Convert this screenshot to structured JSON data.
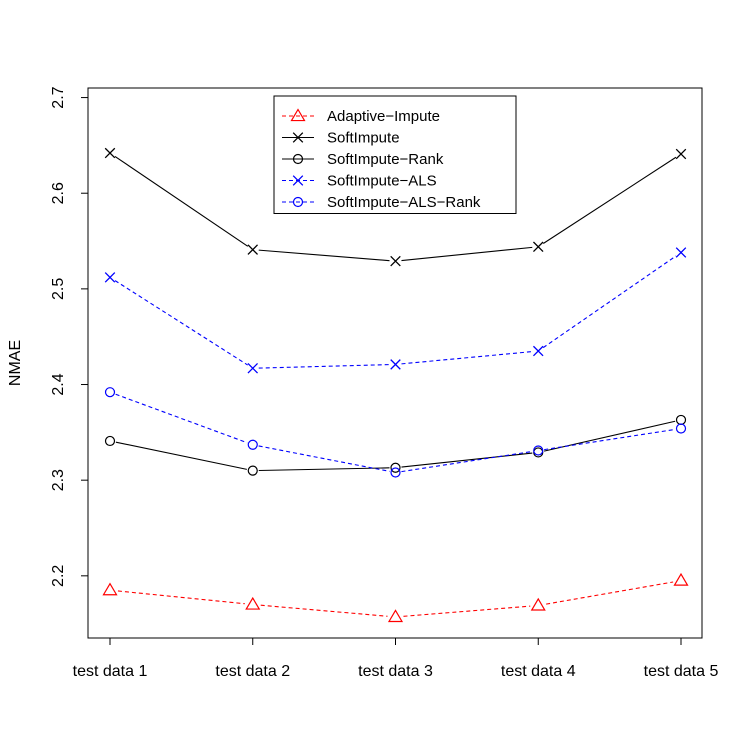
{
  "chart_data": {
    "type": "line",
    "xlabel": "",
    "ylabel": "NMAE",
    "categories": [
      "test data 1",
      "test data 2",
      "test data 3",
      "test data 4",
      "test data 5"
    ],
    "ylim": [
      2.135,
      2.71
    ],
    "yticks": [
      "2.2",
      "2.3",
      "2.4",
      "2.5",
      "2.6",
      "2.7"
    ],
    "legend_position": "top-center",
    "series": [
      {
        "name": "Adaptive−Impute",
        "values": [
          2.185,
          2.17,
          2.157,
          2.169,
          2.195
        ],
        "color": "#ff0000",
        "marker": "triangle",
        "dashed": true
      },
      {
        "name": "SoftImpute",
        "values": [
          2.642,
          2.541,
          2.529,
          2.544,
          2.641
        ],
        "color": "#000000",
        "marker": "cross",
        "dashed": false
      },
      {
        "name": "SoftImpute−Rank",
        "values": [
          2.341,
          2.31,
          2.313,
          2.329,
          2.363
        ],
        "color": "#000000",
        "marker": "circle",
        "dashed": false
      },
      {
        "name": "SoftImpute−ALS",
        "values": [
          2.512,
          2.417,
          2.421,
          2.435,
          2.538
        ],
        "color": "#0000ff",
        "marker": "cross",
        "dashed": true
      },
      {
        "name": "SoftImpute−ALS−Rank",
        "values": [
          2.392,
          2.337,
          2.308,
          2.331,
          2.354
        ],
        "color": "#0000ff",
        "marker": "circle",
        "dashed": true
      }
    ]
  }
}
